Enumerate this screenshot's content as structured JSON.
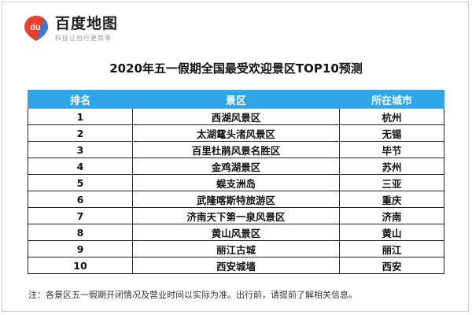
{
  "logo": {
    "name": "百度地图",
    "slogan": "科技让出行更简单",
    "mark": "du"
  },
  "title": "2020年五一假期全国最受欢迎景区TOP10预测",
  "table": {
    "headers": [
      "排名",
      "景区",
      "所在城市"
    ],
    "rows": [
      [
        "1",
        "西湖风景区",
        "杭州"
      ],
      [
        "2",
        "太湖鼋头渚风景区",
        "无锡"
      ],
      [
        "3",
        "百里杜鹃风景名胜区",
        "毕节"
      ],
      [
        "4",
        "金鸡湖景区",
        "苏州"
      ],
      [
        "5",
        "蜈支洲岛",
        "三亚"
      ],
      [
        "6",
        "武隆喀斯特旅游区",
        "重庆"
      ],
      [
        "7",
        "济南天下第一泉风景区",
        "济南"
      ],
      [
        "8",
        "黄山风景区",
        "黄山"
      ],
      [
        "9",
        "丽江古城",
        "丽江"
      ],
      [
        "10",
        "西安城墙",
        "西安"
      ]
    ]
  },
  "note": "注：各景区五一假期开闭情况及营业时间以实际为准。出行前，请提前了解相关信息。",
  "colors": {
    "header_bg": "#2fa6e6",
    "logo_red": "#e8402a",
    "logo_blue": "#2b7de0"
  }
}
